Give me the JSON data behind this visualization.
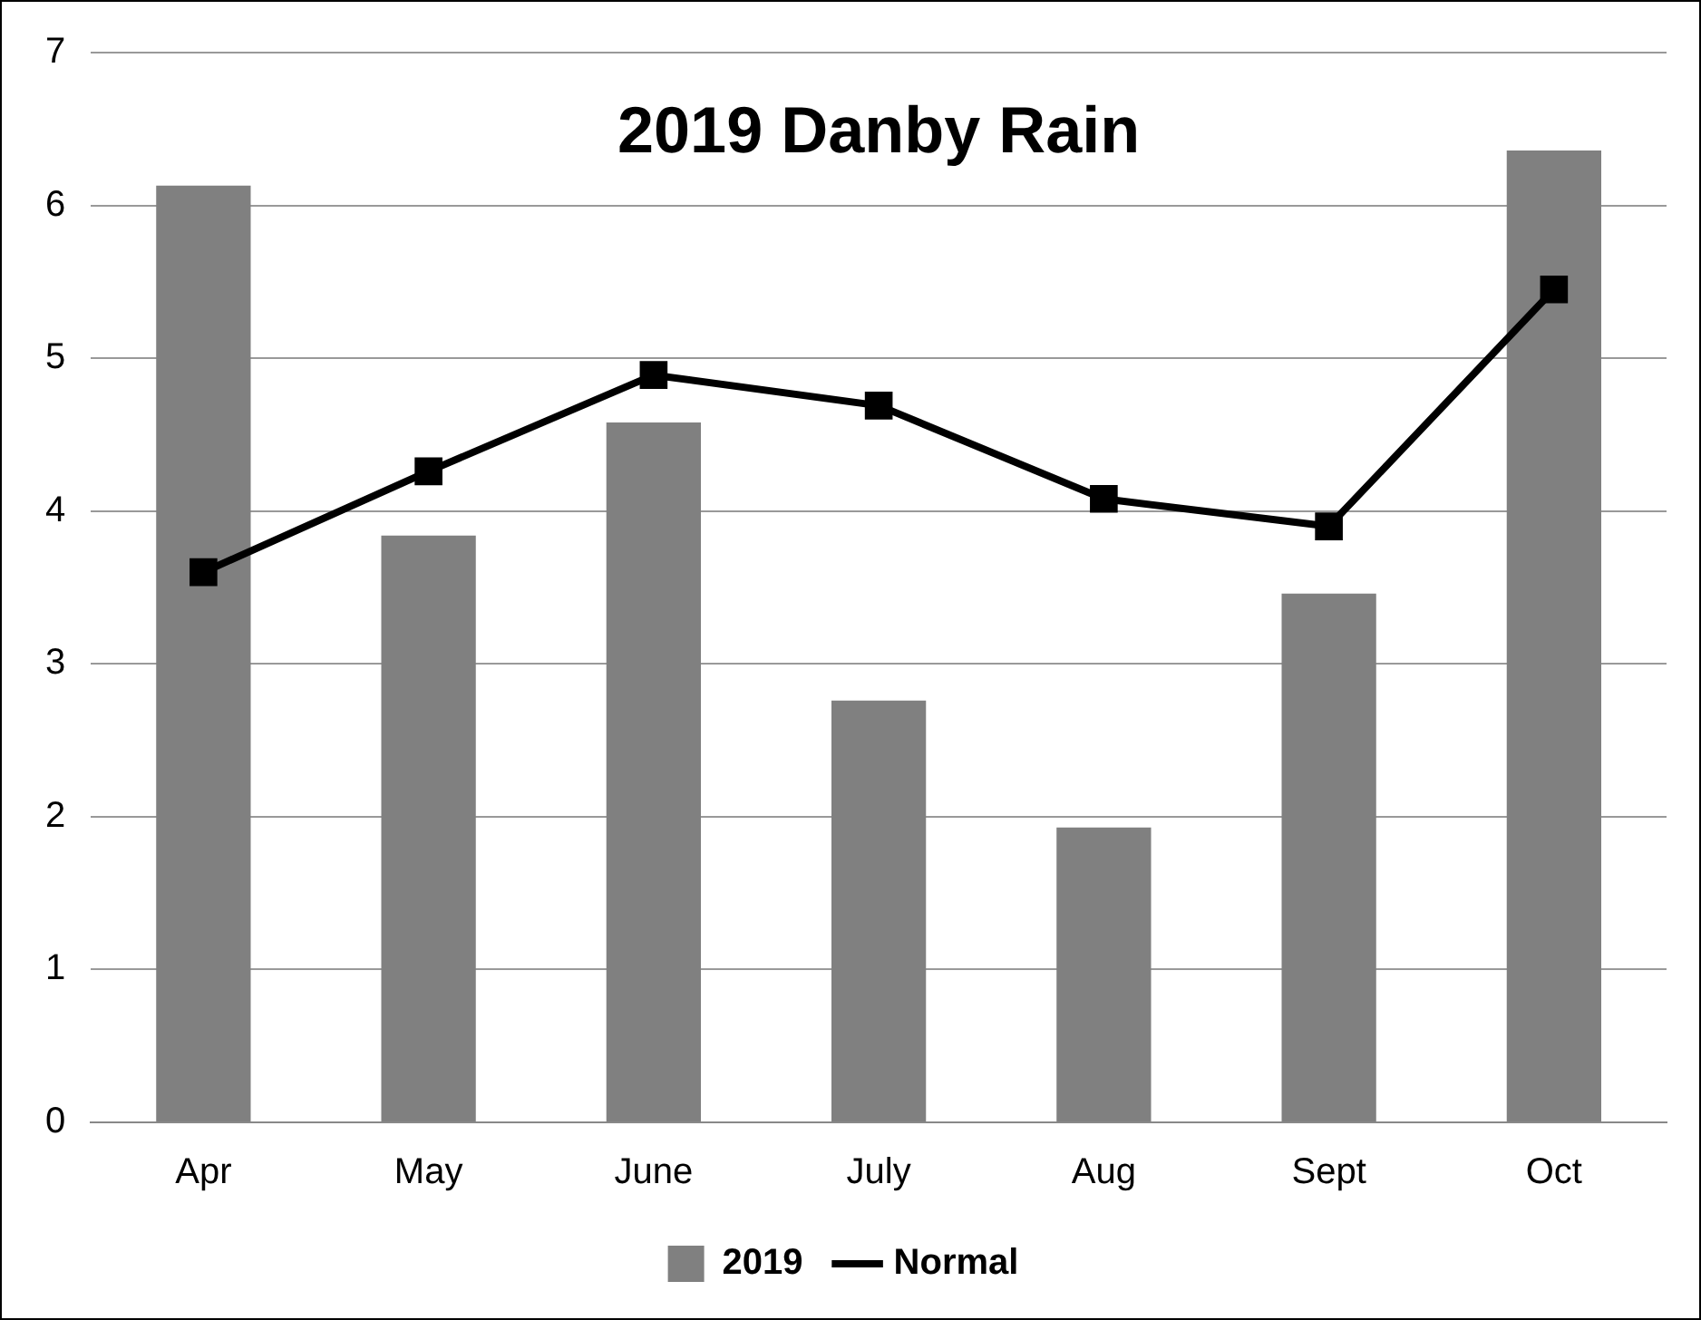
{
  "chart_data": {
    "type": "bar",
    "title": "2019 Danby Rain",
    "categories": [
      "Apr",
      "May",
      "June",
      "July",
      "Aug",
      "Sept",
      "Oct"
    ],
    "series": [
      {
        "name": "2019",
        "color": "#808080",
        "values": [
          6.13,
          3.84,
          4.58,
          2.76,
          1.93,
          3.46,
          6.36
        ]
      },
      {
        "name": "Normal",
        "type": "line",
        "color": "#000000",
        "values": [
          3.6,
          4.26,
          4.89,
          4.69,
          4.08,
          3.9,
          5.45
        ]
      }
    ],
    "ylim": [
      0,
      7
    ],
    "yticks": [
      0,
      1,
      2,
      3,
      4,
      5,
      6,
      7
    ],
    "grid": "y",
    "legend": "bottom",
    "marker": "square"
  }
}
